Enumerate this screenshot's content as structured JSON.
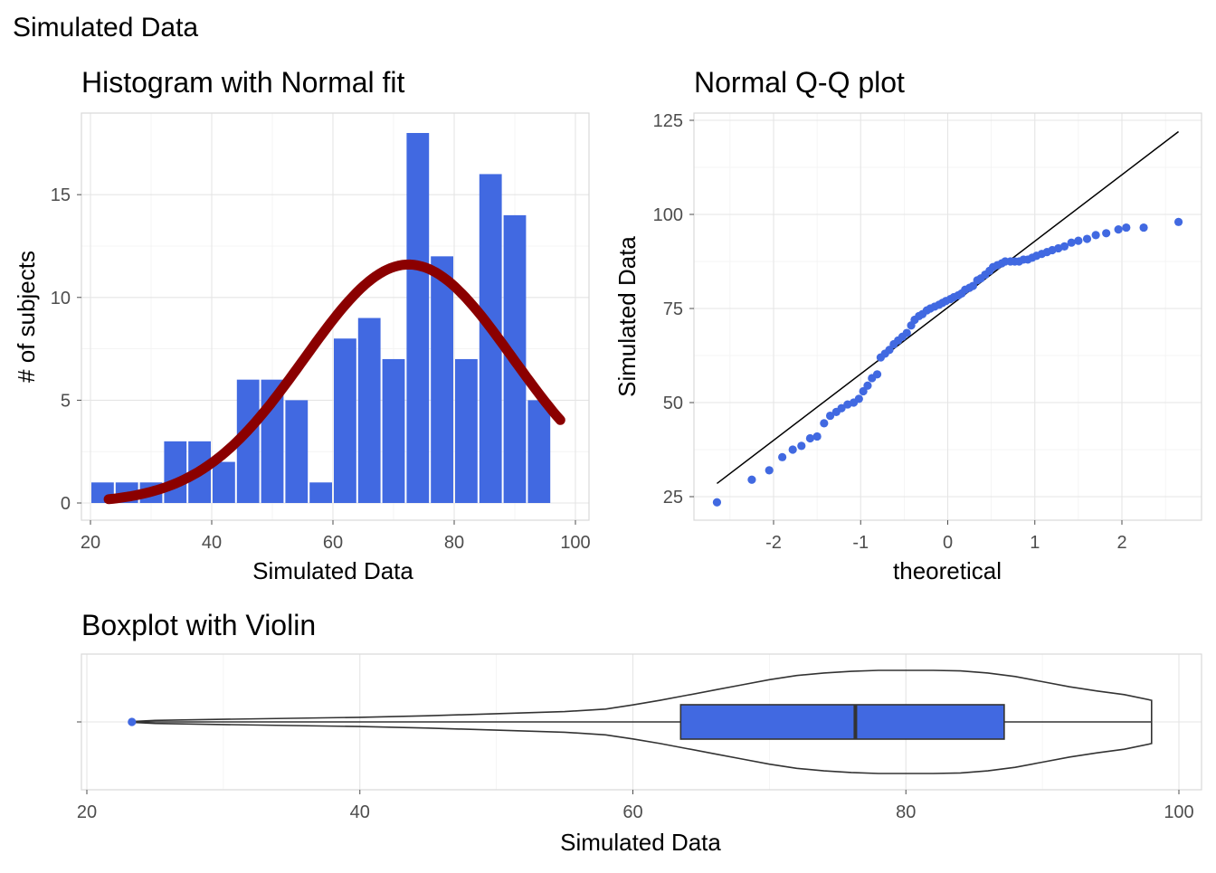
{
  "title": "Simulated Data",
  "chart_data": [
    {
      "type": "histogram",
      "title": "Histogram with Normal fit",
      "xlabel": "Simulated Data",
      "ylabel": "# of subjects",
      "xlim": [
        20,
        100
      ],
      "ylim": [
        0,
        18
      ],
      "xticks": [
        20,
        40,
        60,
        80,
        100
      ],
      "yticks": [
        0,
        5,
        10,
        15
      ],
      "grid": true,
      "bin_width": 4,
      "bins": [
        {
          "x0": 20,
          "x1": 24,
          "count": 1
        },
        {
          "x0": 24,
          "x1": 28,
          "count": 1
        },
        {
          "x0": 28,
          "x1": 32,
          "count": 1
        },
        {
          "x0": 32,
          "x1": 36,
          "count": 3
        },
        {
          "x0": 36,
          "x1": 40,
          "count": 3
        },
        {
          "x0": 40,
          "x1": 44,
          "count": 2
        },
        {
          "x0": 44,
          "x1": 48,
          "count": 6
        },
        {
          "x0": 48,
          "x1": 52,
          "count": 6
        },
        {
          "x0": 52,
          "x1": 56,
          "count": 5
        },
        {
          "x0": 56,
          "x1": 60,
          "count": 1
        },
        {
          "x0": 60,
          "x1": 64,
          "count": 8
        },
        {
          "x0": 64,
          "x1": 68,
          "count": 9
        },
        {
          "x0": 68,
          "x1": 72,
          "count": 7
        },
        {
          "x0": 72,
          "x1": 76,
          "count": 18
        },
        {
          "x0": 76,
          "x1": 80,
          "count": 12
        },
        {
          "x0": 80,
          "x1": 84,
          "count": 7
        },
        {
          "x0": 84,
          "x1": 88,
          "count": 16
        },
        {
          "x0": 88,
          "x1": 92,
          "count": 14
        },
        {
          "x0": 92,
          "x1": 96,
          "count": 5
        }
      ],
      "normal_fit": {
        "mean": 72.5,
        "sd": 17.2,
        "peak_count": 11.6,
        "x_range": [
          23,
          97.5
        ]
      },
      "colors": {
        "bars": "#4169E1",
        "fit": "#8B0000"
      }
    },
    {
      "type": "scatter",
      "title": "Normal Q-Q plot",
      "xlabel": "theoretical",
      "ylabel": "Simulated Data",
      "xlim": [
        -2.9,
        2.85
      ],
      "ylim": [
        20,
        126
      ],
      "xticks": [
        -2,
        -1,
        0,
        1,
        2
      ],
      "xtick_labels": [
        "-2",
        "-1",
        "0",
        "1",
        "2"
      ],
      "yticks": [
        25,
        50,
        75,
        100,
        125
      ],
      "grid": true,
      "reference_line": {
        "x": [
          -2.65,
          2.65
        ],
        "y": [
          28.5,
          122
        ]
      },
      "points": [
        [
          -2.65,
          23.5
        ],
        [
          -2.25,
          29.5
        ],
        [
          -2.05,
          32
        ],
        [
          -1.9,
          35.5
        ],
        [
          -1.78,
          37.5
        ],
        [
          -1.68,
          38.5
        ],
        [
          -1.58,
          40.5
        ],
        [
          -1.5,
          41
        ],
        [
          -1.42,
          44.5
        ],
        [
          -1.35,
          46.5
        ],
        [
          -1.28,
          47.5
        ],
        [
          -1.22,
          48.5
        ],
        [
          -1.15,
          49.5
        ],
        [
          -1.08,
          50
        ],
        [
          -1.02,
          51
        ],
        [
          -0.97,
          53
        ],
        [
          -0.92,
          54.5
        ],
        [
          -0.87,
          56.5
        ],
        [
          -0.81,
          57.5
        ],
        [
          -0.77,
          62
        ],
        [
          -0.72,
          63
        ],
        [
          -0.67,
          64
        ],
        [
          -0.62,
          65.5
        ],
        [
          -0.57,
          66.5
        ],
        [
          -0.52,
          67.5
        ],
        [
          -0.47,
          68.5
        ],
        [
          -0.42,
          70.5
        ],
        [
          -0.38,
          72
        ],
        [
          -0.33,
          73
        ],
        [
          -0.29,
          73.5
        ],
        [
          -0.24,
          74.5
        ],
        [
          -0.2,
          75
        ],
        [
          -0.15,
          75.5
        ],
        [
          -0.1,
          76
        ],
        [
          -0.06,
          76.5
        ],
        [
          -0.02,
          77
        ],
        [
          0.03,
          77.5
        ],
        [
          0.07,
          78
        ],
        [
          0.12,
          78.5
        ],
        [
          0.16,
          79
        ],
        [
          0.2,
          80
        ],
        [
          0.25,
          80.5
        ],
        [
          0.29,
          81
        ],
        [
          0.34,
          82.5
        ],
        [
          0.38,
          83
        ],
        [
          0.43,
          84
        ],
        [
          0.48,
          85
        ],
        [
          0.52,
          86
        ],
        [
          0.57,
          86.5
        ],
        [
          0.62,
          87
        ],
        [
          0.66,
          87.5
        ],
        [
          0.72,
          87.5
        ],
        [
          0.77,
          87.5
        ],
        [
          0.82,
          87.5
        ],
        [
          0.87,
          88
        ],
        [
          0.92,
          88
        ],
        [
          0.97,
          88.5
        ],
        [
          1.02,
          89
        ],
        [
          1.08,
          89.5
        ],
        [
          1.14,
          90
        ],
        [
          1.2,
          90.5
        ],
        [
          1.27,
          91
        ],
        [
          1.34,
          91.5
        ],
        [
          1.42,
          92.5
        ],
        [
          1.5,
          93
        ],
        [
          1.6,
          93.5
        ],
        [
          1.7,
          94.5
        ],
        [
          1.82,
          95
        ],
        [
          1.96,
          96
        ],
        [
          2.05,
          96.5
        ],
        [
          2.25,
          96.5
        ],
        [
          2.65,
          98
        ]
      ],
      "colors": {
        "points": "#4169E1",
        "line": "#000000"
      }
    },
    {
      "type": "boxplot",
      "title": "Boxplot with Violin",
      "xlabel": "Simulated Data",
      "xlim": [
        19.5,
        102
      ],
      "xticks": [
        20,
        40,
        60,
        80,
        100
      ],
      "grid": true,
      "box": {
        "q1": 63.5,
        "median": 76.3,
        "q3": 87.2,
        "whisker_low": 23.5,
        "whisker_high": 98
      },
      "outliers": [
        23.3
      ],
      "violin": {
        "profile": [
          [
            23.5,
            0.01
          ],
          [
            25,
            0.03
          ],
          [
            30,
            0.05
          ],
          [
            35,
            0.07
          ],
          [
            40,
            0.09
          ],
          [
            45,
            0.12
          ],
          [
            50,
            0.16
          ],
          [
            55,
            0.2
          ],
          [
            58,
            0.25
          ],
          [
            60,
            0.33
          ],
          [
            62,
            0.42
          ],
          [
            64,
            0.52
          ],
          [
            66,
            0.62
          ],
          [
            68,
            0.72
          ],
          [
            70,
            0.82
          ],
          [
            72,
            0.9
          ],
          [
            74,
            0.95
          ],
          [
            76,
            0.98
          ],
          [
            78,
            1.0
          ],
          [
            80,
            1.0
          ],
          [
            82,
            1.0
          ],
          [
            84,
            0.99
          ],
          [
            86,
            0.95
          ],
          [
            88,
            0.88
          ],
          [
            90,
            0.78
          ],
          [
            92,
            0.68
          ],
          [
            94,
            0.6
          ],
          [
            96,
            0.53
          ],
          [
            98,
            0.42
          ]
        ]
      },
      "colors": {
        "box": "#4169E1",
        "outlier": "#4169E1",
        "violin": "#333333"
      }
    }
  ]
}
